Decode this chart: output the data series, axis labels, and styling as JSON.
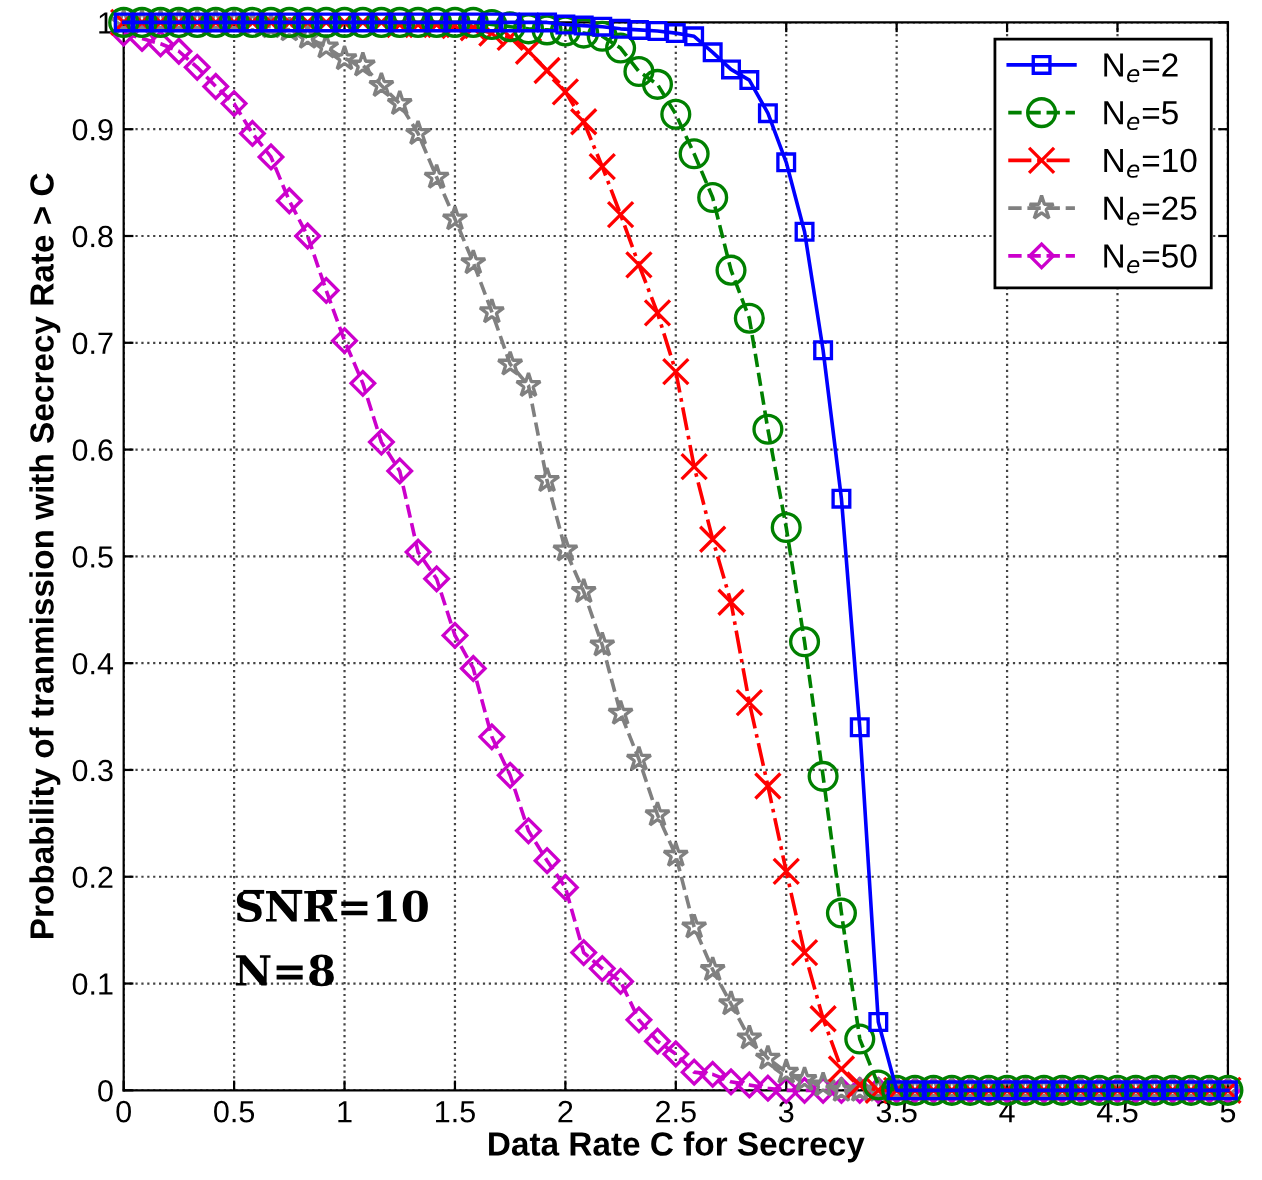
{
  "chart_data": {
    "type": "line",
    "xlabel": "Data Rate C for Secrecy",
    "ylabel": "Probability of tranmission with Secrecy Rate > C",
    "x": [
      0,
      0.083,
      0.167,
      0.25,
      0.333,
      0.417,
      0.5,
      0.583,
      0.667,
      0.75,
      0.833,
      0.917,
      1,
      1.083,
      1.167,
      1.25,
      1.333,
      1.417,
      1.5,
      1.583,
      1.667,
      1.75,
      1.833,
      1.917,
      2,
      2.083,
      2.167,
      2.25,
      2.333,
      2.417,
      2.5,
      2.583,
      2.667,
      2.75,
      2.833,
      2.917,
      3,
      3.083,
      3.167,
      3.25,
      3.333,
      3.417,
      3.5,
      3.583,
      3.667,
      3.75,
      3.833,
      3.917,
      4,
      4.083,
      4.167,
      4.25,
      4.333,
      4.417,
      4.5,
      4.583,
      4.667,
      4.75,
      4.833,
      4.917,
      5
    ],
    "series": [
      {
        "name": "N$_{e}$=2",
        "color": "#0000ff",
        "marker": "square",
        "line_style": "solid",
        "values": [
          1,
          1,
          1,
          1,
          1,
          1,
          1,
          1,
          1,
          1,
          1,
          1,
          1,
          1,
          1,
          1,
          1,
          1,
          1,
          1,
          1,
          1,
          1,
          1,
          0.998,
          0.997,
          0.996,
          0.994,
          0.993,
          0.992,
          0.99,
          0.987,
          0.972,
          0.956,
          0.946,
          0.915,
          0.869,
          0.804,
          0.693,
          0.554,
          0.34,
          0.064,
          0,
          0,
          0,
          0,
          0,
          0,
          0,
          0,
          0,
          0,
          0,
          0,
          0,
          0,
          0,
          0,
          0,
          0,
          0
        ]
      },
      {
        "name": "N$_{e}$=5",
        "color": "#008000",
        "marker": "circle",
        "line_style": "dashed",
        "values": [
          1,
          1,
          1,
          1,
          1,
          1,
          1,
          1,
          1,
          1,
          1,
          1,
          1,
          1,
          1,
          1,
          1,
          1,
          1,
          1,
          0.998,
          0.996,
          0.994,
          0.993,
          0.992,
          0.99,
          0.987,
          0.976,
          0.954,
          0.942,
          0.914,
          0.877,
          0.836,
          0.768,
          0.723,
          0.619,
          0.527,
          0.42,
          0.294,
          0.166,
          0.048,
          0.005,
          0,
          0,
          0,
          0,
          0,
          0,
          0,
          0,
          0,
          0,
          0,
          0,
          0,
          0,
          0,
          0,
          0,
          0,
          0
        ]
      },
      {
        "name": "N$_{e}$=10",
        "color": "#ff0000",
        "marker": "cross",
        "line_style": "dashdot",
        "values": [
          1,
          1,
          1,
          1,
          1,
          1,
          1,
          1,
          1,
          1,
          1,
          1,
          1,
          1,
          1,
          0.998,
          0.998,
          0.998,
          0.997,
          0.995,
          0.99,
          0.986,
          0.973,
          0.955,
          0.935,
          0.907,
          0.865,
          0.82,
          0.773,
          0.728,
          0.673,
          0.584,
          0.516,
          0.457,
          0.363,
          0.285,
          0.205,
          0.129,
          0.067,
          0.02,
          0.005,
          0,
          0,
          0,
          0,
          0,
          0,
          0,
          0,
          0,
          0,
          0,
          0,
          0,
          0,
          0,
          0,
          0,
          0,
          0,
          0
        ]
      },
      {
        "name": "N$_{e}$=25",
        "color": "#808080",
        "marker": "star",
        "line_style": "dashed",
        "values": [
          1,
          1,
          1,
          1,
          1,
          1,
          1,
          0.998,
          0.996,
          0.993,
          0.986,
          0.977,
          0.966,
          0.96,
          0.941,
          0.924,
          0.896,
          0.855,
          0.816,
          0.775,
          0.729,
          0.68,
          0.66,
          0.571,
          0.506,
          0.467,
          0.417,
          0.353,
          0.31,
          0.258,
          0.22,
          0.153,
          0.113,
          0.081,
          0.049,
          0.03,
          0.017,
          0.01,
          0.005,
          0,
          0,
          0,
          0,
          0,
          0,
          0,
          0,
          0,
          0,
          0,
          0,
          0,
          0,
          0,
          0,
          0,
          0,
          0,
          0,
          0,
          0
        ]
      },
      {
        "name": "N$_{e}$=50",
        "color": "#cc00cc",
        "marker": "diamond",
        "line_style": "dashed",
        "values": [
          0.99,
          0.985,
          0.98,
          0.973,
          0.958,
          0.94,
          0.924,
          0.896,
          0.874,
          0.833,
          0.8,
          0.749,
          0.702,
          0.662,
          0.607,
          0.58,
          0.504,
          0.479,
          0.426,
          0.395,
          0.331,
          0.295,
          0.243,
          0.215,
          0.19,
          0.129,
          0.114,
          0.102,
          0.066,
          0.046,
          0.034,
          0.017,
          0.015,
          0.008,
          0.005,
          0.002,
          0,
          0,
          0,
          0,
          0,
          0,
          0,
          0,
          0,
          0,
          0,
          0,
          0,
          0,
          0,
          0,
          0,
          0,
          0,
          0,
          0,
          0,
          0,
          0,
          0
        ]
      }
    ],
    "xlim": [
      0,
      5
    ],
    "xticks": [
      0,
      0.5,
      1,
      1.5,
      2,
      2.5,
      3,
      3.5,
      4,
      4.5,
      5
    ],
    "ylim": [
      0,
      1
    ],
    "yticks": [
      0,
      0.1,
      0.2,
      0.3,
      0.4,
      0.5,
      0.6,
      0.7,
      0.8,
      0.9,
      1
    ],
    "grid": true,
    "legend": "top right",
    "annotations": [
      "S̅N̅R̅=10",
      "N=8"
    ]
  }
}
